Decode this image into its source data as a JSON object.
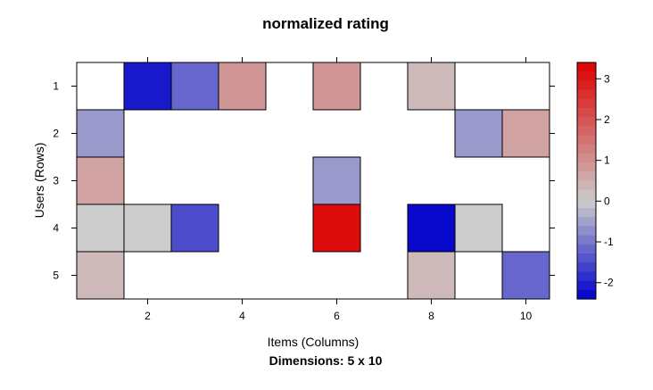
{
  "chart_data": {
    "type": "heatmap",
    "title": "normalized rating",
    "xlabel": "Items (Columns)",
    "ylabel": "Users (Rows)",
    "subtitle": "Dimensions: 5 x 10",
    "rows": [
      1,
      2,
      3,
      4,
      5
    ],
    "columns": [
      1,
      2,
      3,
      4,
      5,
      6,
      7,
      8,
      9,
      10
    ],
    "x_ticks": [
      "2",
      "4",
      "6",
      "8",
      "10"
    ],
    "y_ticks": [
      "1",
      "2",
      "3",
      "4",
      "5"
    ],
    "values": [
      [
        null,
        -2.1,
        -1.2,
        0.9,
        null,
        0.9,
        null,
        0.3,
        null,
        null
      ],
      [
        -0.6,
        null,
        null,
        null,
        null,
        null,
        null,
        null,
        -0.6,
        0.7
      ],
      [
        0.7,
        null,
        null,
        null,
        null,
        -0.6,
        null,
        null,
        null,
        null
      ],
      [
        0.0,
        0.0,
        -1.5,
        null,
        null,
        3.2,
        null,
        -2.3,
        0.0,
        null
      ],
      [
        0.3,
        null,
        null,
        null,
        null,
        null,
        null,
        0.3,
        null,
        -1.2
      ]
    ],
    "colorbar": {
      "min": -2.4,
      "max": 3.4,
      "ticks": [
        "3",
        "2",
        "1",
        "0",
        "-1",
        "-2"
      ],
      "low_color": "#0000cc",
      "mid_color": "#cccccc",
      "high_color": "#dd0000"
    }
  }
}
